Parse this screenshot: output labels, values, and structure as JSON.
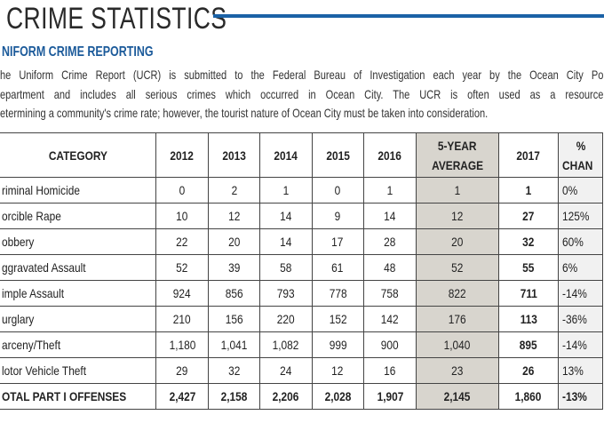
{
  "page": {
    "title": "CRIME STATISTICS",
    "subtitle": "NIFORM CRIME REPORTING",
    "paragraph_lines": [
      "he Uniform Crime Report (UCR) is submitted to the Federal Bureau of Investigation each year by the Ocean City Po",
      "epartment and includes all serious crimes which occurred in Ocean City. The UCR is often used as a resource",
      "etermining a community's crime rate; however, the tourist nature of Ocean City must be taken into consideration."
    ],
    "accent_color": "#1b62a6"
  },
  "table": {
    "headers": [
      "CATEGORY",
      "2012",
      "2013",
      "2014",
      "2015",
      "2016",
      "5-YEAR",
      "AVERAGE",
      "2017",
      "%",
      "CHAN"
    ],
    "rows": [
      {
        "category": "riminal Homicide",
        "v": [
          "0",
          "2",
          "1",
          "0",
          "1"
        ],
        "avg": "1",
        "y2017": "1",
        "change": "0%"
      },
      {
        "category": "orcible Rape",
        "v": [
          "10",
          "12",
          "14",
          "9",
          "14"
        ],
        "avg": "12",
        "y2017": "27",
        "change": "125%"
      },
      {
        "category": "obbery",
        "v": [
          "22",
          "20",
          "14",
          "17",
          "28"
        ],
        "avg": "20",
        "y2017": "32",
        "change": "60%"
      },
      {
        "category": "ggravated Assault",
        "v": [
          "52",
          "39",
          "58",
          "61",
          "48"
        ],
        "avg": "52",
        "y2017": "55",
        "change": "6%"
      },
      {
        "category": "imple Assault",
        "v": [
          "924",
          "856",
          "793",
          "778",
          "758"
        ],
        "avg": "822",
        "y2017": "711",
        "change": "-14%"
      },
      {
        "category": "urglary",
        "v": [
          "210",
          "156",
          "220",
          "152",
          "142"
        ],
        "avg": "176",
        "y2017": "113",
        "change": "-36%"
      },
      {
        "category": "arceny/Theft",
        "v": [
          "1,180",
          "1,041",
          "1,082",
          "999",
          "900"
        ],
        "avg": "1,040",
        "y2017": "895",
        "change": "-14%"
      },
      {
        "category": "lotor Vehicle Theft",
        "v": [
          "29",
          "32",
          "24",
          "12",
          "16"
        ],
        "avg": "23",
        "y2017": "26",
        "change": "13%"
      },
      {
        "category": "OTAL PART I OFFENSES",
        "v": [
          "2,427",
          "2,158",
          "2,206",
          "2,028",
          "1,907"
        ],
        "avg": "2,145",
        "y2017": "1,860",
        "change": "-13%"
      }
    ]
  }
}
